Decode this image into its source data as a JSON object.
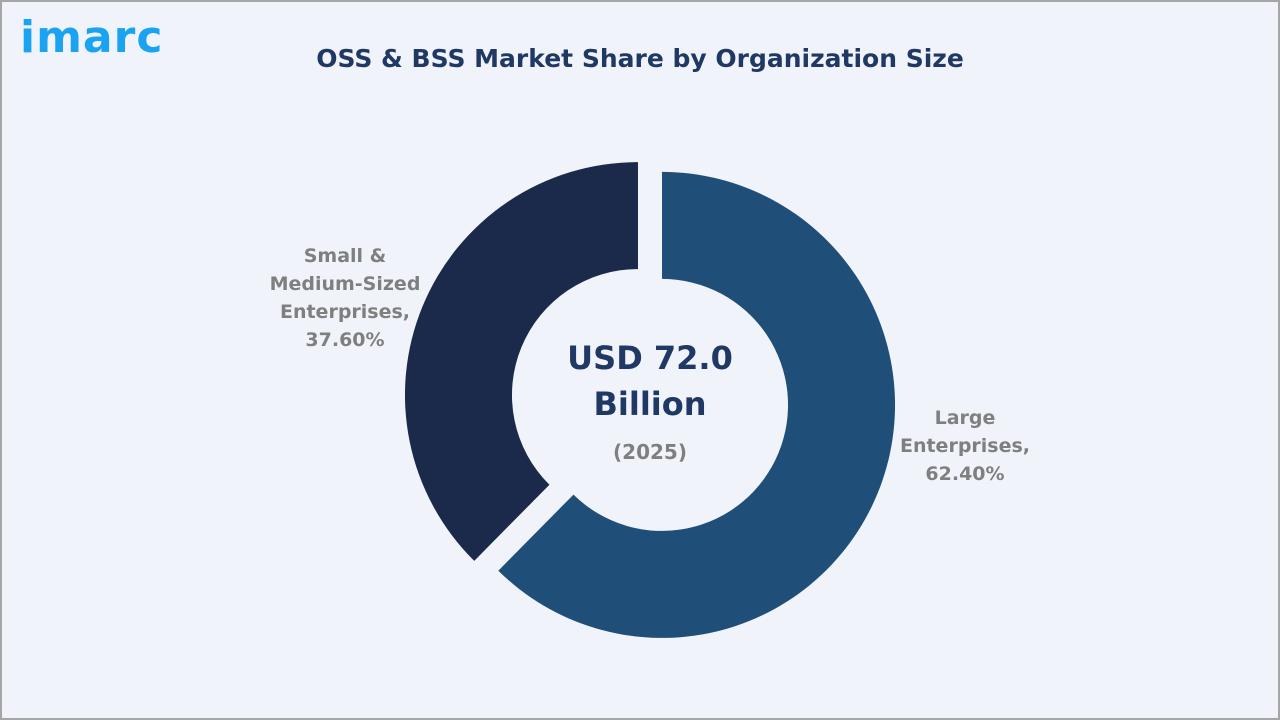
{
  "logo": "imarc",
  "chart_data": {
    "type": "pie",
    "subtype": "donut",
    "title": "OSS & BSS Market Share by Organization Size",
    "center_value": "USD 72.0",
    "center_unit": "Billion",
    "center_year": "(2025)",
    "slices": [
      {
        "label_line1": "Large",
        "label_line2": "Enterprises,",
        "value_label": "62.40%",
        "value": 62.4,
        "color": "#1f4e79"
      },
      {
        "label_line0": "Small &",
        "label_line1": "Medium-Sized",
        "label_line2": "Enterprises,",
        "value_label": "37.60%",
        "value": 37.6,
        "color": "#1b2a4a"
      }
    ],
    "legend": "none"
  }
}
